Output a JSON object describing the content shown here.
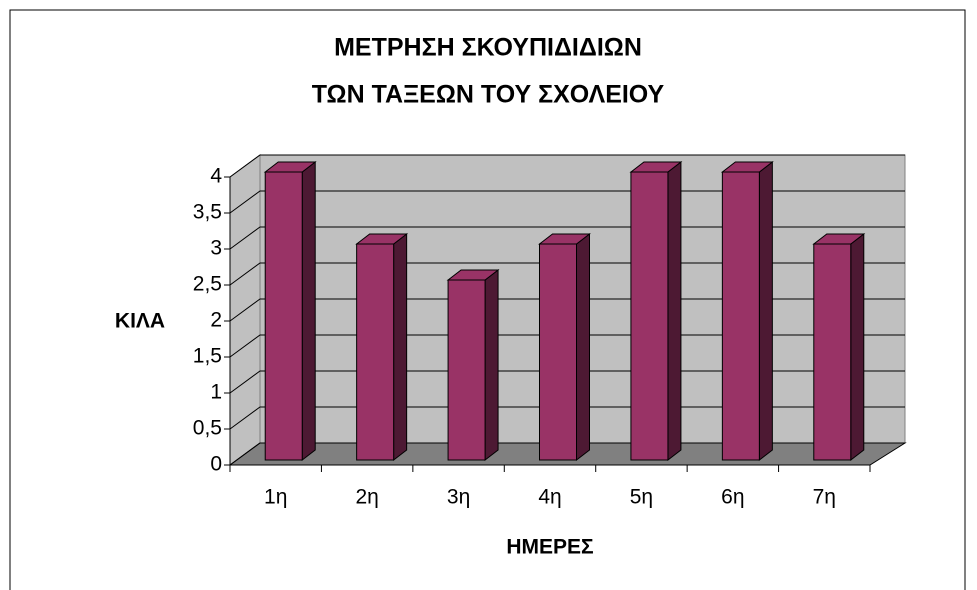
{
  "chart_data": {
    "type": "bar3d",
    "title": [
      "ΜΕΤΡΗΣΗ ΣΚΟΥΠΙΔΙΔΙΩΝ",
      "ΤΩΝ ΤΑΞΕΩΝ ΤΟΥ ΣΧΟΛΕΙΟΥ"
    ],
    "y_label": "ΚΙΛΑ",
    "x_label": "ΗΜΕΡΕΣ",
    "categories": [
      "1η",
      "2η",
      "3η",
      "4η",
      "5η",
      "6η",
      "7η"
    ],
    "values": [
      4,
      3,
      2.5,
      3,
      4,
      4,
      3
    ],
    "color": "#993366",
    "ylim": [
      0,
      4
    ],
    "yticks": [
      0,
      {
        "value": 0.5,
        "label": "0,5"
      },
      1,
      {
        "value": 1.5,
        "label": "1,5"
      },
      2,
      {
        "value": 2.5,
        "label": "2,5"
      },
      3,
      {
        "value": 3.5,
        "label": "3,5"
      },
      4
    ],
    "grid": true
  }
}
